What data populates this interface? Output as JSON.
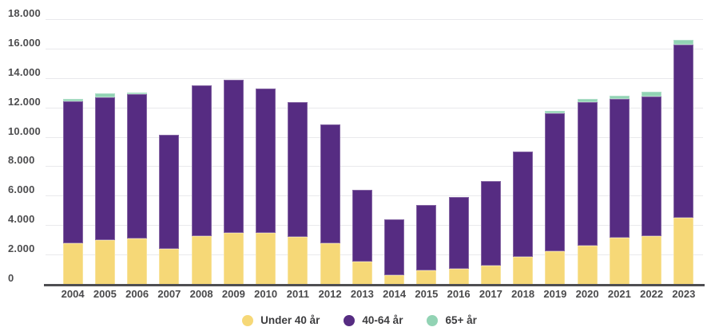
{
  "chart_data": {
    "type": "bar",
    "stacked": true,
    "title": "",
    "xlabel": "",
    "ylabel": "",
    "categories": [
      "2004",
      "2005",
      "2006",
      "2007",
      "2008",
      "2009",
      "2010",
      "2011",
      "2012",
      "2013",
      "2014",
      "2015",
      "2016",
      "2017",
      "2018",
      "2019",
      "2020",
      "2021",
      "2022",
      "2023"
    ],
    "series": [
      {
        "name": "Under 40 år",
        "color": "#F6D877",
        "values": [
          2800,
          3050,
          3150,
          2450,
          3300,
          3550,
          3500,
          3250,
          2800,
          1600,
          650,
          1000,
          1100,
          1300,
          1900,
          2300,
          2650,
          3200,
          3300,
          4550
        ]
      },
      {
        "name": "40-64 år",
        "color": "#562C82",
        "values": [
          9650,
          9700,
          9800,
          7750,
          10250,
          10400,
          9850,
          9150,
          8100,
          4850,
          3800,
          4400,
          4850,
          5750,
          7150,
          9350,
          9750,
          9450,
          9500,
          11750
        ]
      },
      {
        "name": "65+ år",
        "color": "#92D3B4",
        "values": [
          200,
          250,
          100,
          0,
          0,
          0,
          0,
          0,
          0,
          0,
          0,
          0,
          0,
          0,
          0,
          150,
          250,
          200,
          300,
          350
        ]
      }
    ],
    "totals": [
      12650,
      13000,
      13050,
      10200,
      13550,
      13950,
      13350,
      12400,
      10900,
      6450,
      4450,
      5400,
      5950,
      7050,
      9050,
      11800,
      12650,
      12850,
      13100,
      16650
    ],
    "ylim": [
      0,
      18000
    ],
    "ytick_step": 2000,
    "ytick_values": [
      0,
      2000,
      4000,
      6000,
      8000,
      10000,
      12000,
      14000,
      16000,
      18000
    ],
    "ytick_labels": [
      "0",
      "2.000",
      "4.000",
      "6.000",
      "8.000",
      "10.000",
      "12.000",
      "14.000",
      "16.000",
      "18.000"
    ],
    "grid": true,
    "gridline_color": "#e9e9ec",
    "axis_line_color": "#4e4e52",
    "tick_label_color": "#4a4a4c",
    "legend_position": "bottom-center",
    "legend_labels": [
      "Under 40 år",
      "40-64 år",
      "65+ år"
    ]
  }
}
